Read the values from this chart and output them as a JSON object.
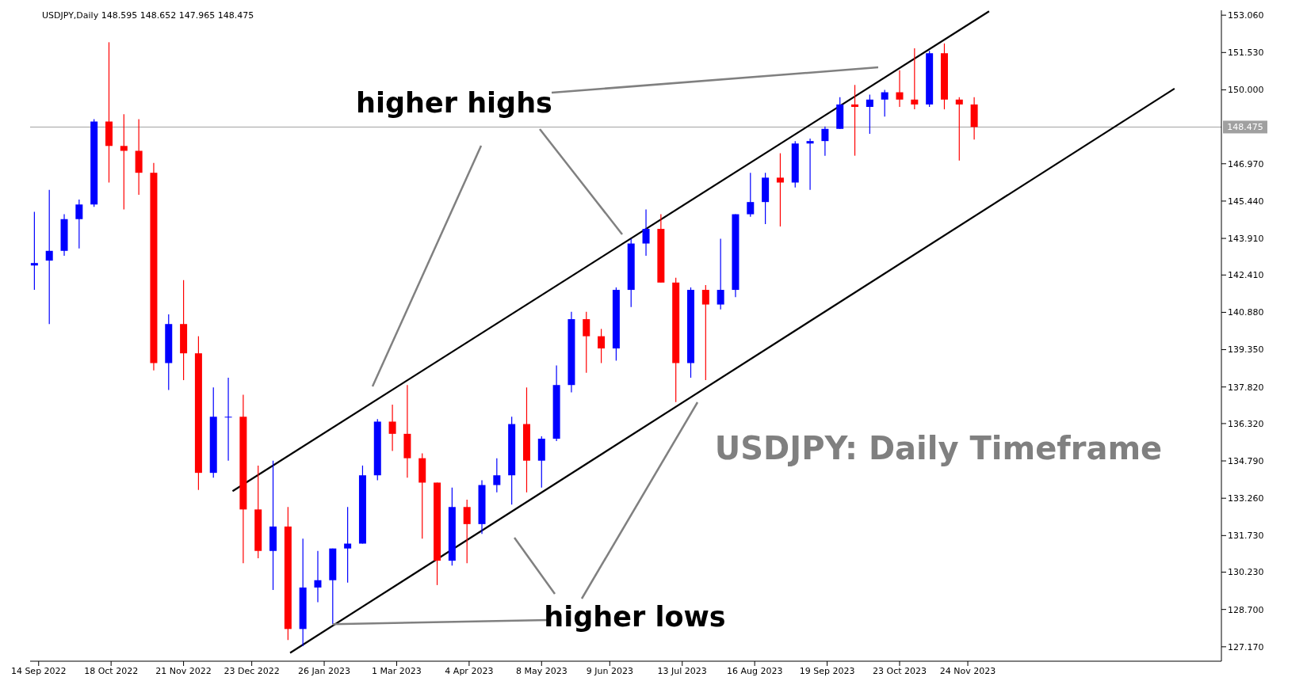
{
  "chart_data": {
    "type": "candlestick",
    "title": "USDJPY,Daily  148.595 148.652 147.965 148.475",
    "annotations": [
      "higher highs",
      {
        "text": "higher lows",
        "x": "2023-01-30",
        "y": 128.1
      },
      "USDJPY: Daily Timeframe"
    ],
    "ylim": [
      126.58,
      153.26
    ],
    "yticks": [
      {
        "value": 127.17,
        "label": "127.170"
      },
      {
        "value": 128.7,
        "label": "128.700"
      },
      {
        "value": 130.23,
        "label": "130.230"
      },
      {
        "value": 131.73,
        "label": "131.730"
      },
      {
        "value": 133.26,
        "label": "133.260"
      },
      {
        "value": 134.79,
        "label": "134.790"
      },
      {
        "value": 136.32,
        "label": "136.320"
      },
      {
        "value": 137.82,
        "label": "137.820"
      },
      {
        "value": 139.35,
        "label": "139.350"
      },
      {
        "value": 140.88,
        "label": "140.880"
      },
      {
        "value": 142.41,
        "label": "142.410"
      },
      {
        "value": 143.91,
        "label": "143.910"
      },
      {
        "value": 145.44,
        "label": "145.440"
      },
      {
        "value": 146.97,
        "label": "146.970"
      },
      {
        "value": 150,
        "label": "150.000"
      },
      {
        "value": 151.53,
        "label": "151.530"
      },
      {
        "value": 153.06,
        "label": "153.060"
      }
    ],
    "xlim": [
      "2022-09-10",
      "2024-03-22"
    ],
    "xticks": [
      {
        "value": "2022-09-14",
        "label": "14 Sep 2022"
      },
      {
        "value": "2022-10-18",
        "label": "18 Oct 2022"
      },
      {
        "value": "2022-11-21",
        "label": "21 Nov 2022"
      },
      {
        "value": "2022-12-23",
        "label": "23 Dec 2022"
      },
      {
        "value": "2023-01-26",
        "label": "26 Jan 2023"
      },
      {
        "value": "2023-03-01",
        "label": "1 Mar 2023"
      },
      {
        "value": "2023-04-04",
        "label": "4 Apr 2023"
      },
      {
        "value": "2023-05-08",
        "label": "8 May 2023"
      },
      {
        "value": "2023-06-09",
        "label": "9 Jun 2023"
      },
      {
        "value": "2023-07-13",
        "label": "13 Jul 2023"
      },
      {
        "value": "2023-08-16",
        "label": "16 Aug 2023"
      },
      {
        "value": "2023-09-19",
        "label": "19 Sep 2023"
      },
      {
        "value": "2023-10-23",
        "label": "23 Oct 2023"
      },
      {
        "value": "2023-11-24",
        "label": "24 Nov 2023"
      }
    ],
    "ref_lines": [
      {
        "axis": "y",
        "value": 148.475,
        "label": "148.475",
        "color": "#a0a0a0"
      }
    ],
    "grid": false,
    "legend": false,
    "series": [
      {
        "type": "candlestick",
        "x": [
          "2022-09-12",
          "2022-09-19",
          "2022-09-26",
          "2022-10-03",
          "2022-10-10",
          "2022-10-17",
          "2022-10-24",
          "2022-10-31",
          "2022-11-07",
          "2022-11-14",
          "2022-11-21",
          "2022-11-28",
          "2022-12-05",
          "2022-12-12",
          "2022-12-19",
          "2022-12-26",
          "2023-01-02",
          "2023-01-09",
          "2023-01-16",
          "2023-01-23",
          "2023-01-30",
          "2023-02-06",
          "2023-02-13",
          "2023-02-20",
          "2023-02-27",
          "2023-03-06",
          "2023-03-13",
          "2023-03-20",
          "2023-03-27",
          "2023-04-03",
          "2023-04-10",
          "2023-04-17",
          "2023-04-24",
          "2023-05-01",
          "2023-05-08",
          "2023-05-15",
          "2023-05-22",
          "2023-05-29",
          "2023-06-05",
          "2023-06-12",
          "2023-06-19",
          "2023-06-26",
          "2023-07-03",
          "2023-07-10",
          "2023-07-17",
          "2023-07-24",
          "2023-07-31",
          "2023-08-07",
          "2023-08-14",
          "2023-08-21",
          "2023-08-28",
          "2023-09-04",
          "2023-09-11",
          "2023-09-18",
          "2023-09-25",
          "2023-10-02",
          "2023-10-09",
          "2023-10-16",
          "2023-10-23",
          "2023-10-30",
          "2023-11-06",
          "2023-11-13",
          "2023-11-20",
          "2023-11-27"
        ],
        "ohlc": [
          [
            142.8,
            145.0,
            141.8,
            142.9
          ],
          [
            143.0,
            145.9,
            140.4,
            143.4
          ],
          [
            143.4,
            144.9,
            143.2,
            144.7
          ],
          [
            144.7,
            145.5,
            143.5,
            145.3
          ],
          [
            145.3,
            148.8,
            145.2,
            148.7
          ],
          [
            148.7,
            151.95,
            146.2,
            147.7
          ],
          [
            147.7,
            149.0,
            145.1,
            147.5
          ],
          [
            147.5,
            148.8,
            145.7,
            146.6
          ],
          [
            146.6,
            147.0,
            138.5,
            138.8
          ],
          [
            138.8,
            140.8,
            137.7,
            140.4
          ],
          [
            140.4,
            142.2,
            138.1,
            139.2
          ],
          [
            139.2,
            139.9,
            133.6,
            134.3
          ],
          [
            134.3,
            137.8,
            134.1,
            136.6
          ],
          [
            136.6,
            138.2,
            134.8,
            136.6
          ],
          [
            136.6,
            137.5,
            130.6,
            132.8
          ],
          [
            132.8,
            134.6,
            130.8,
            131.1
          ],
          [
            131.1,
            134.8,
            129.5,
            132.1
          ],
          [
            132.1,
            132.9,
            127.45,
            127.9
          ],
          [
            127.9,
            131.6,
            127.2,
            129.6
          ],
          [
            129.6,
            131.1,
            129.0,
            129.9
          ],
          [
            129.9,
            131.2,
            128.1,
            131.2
          ],
          [
            131.2,
            132.9,
            129.8,
            131.4
          ],
          [
            131.4,
            134.6,
            131.4,
            134.2
          ],
          [
            134.2,
            136.5,
            134.0,
            136.4
          ],
          [
            136.4,
            137.1,
            135.2,
            135.9
          ],
          [
            135.9,
            137.9,
            134.1,
            134.9
          ],
          [
            134.9,
            135.1,
            131.6,
            133.9
          ],
          [
            133.9,
            133.9,
            129.7,
            130.7
          ],
          [
            130.7,
            133.7,
            130.5,
            132.9
          ],
          [
            132.9,
            133.2,
            130.6,
            132.2
          ],
          [
            132.2,
            134.0,
            131.8,
            133.8
          ],
          [
            133.8,
            134.9,
            133.5,
            134.2
          ],
          [
            134.2,
            136.6,
            133.0,
            136.3
          ],
          [
            136.3,
            137.8,
            133.5,
            134.8
          ],
          [
            134.8,
            135.8,
            133.7,
            135.7
          ],
          [
            135.7,
            138.7,
            135.6,
            137.9
          ],
          [
            137.9,
            140.9,
            137.6,
            140.6
          ],
          [
            140.6,
            140.9,
            138.4,
            139.9
          ],
          [
            139.9,
            140.2,
            138.8,
            139.4
          ],
          [
            139.4,
            141.9,
            138.9,
            141.8
          ],
          [
            141.8,
            143.9,
            141.1,
            143.7
          ],
          [
            143.7,
            145.1,
            143.2,
            144.3
          ],
          [
            144.3,
            144.9,
            142.1,
            142.1
          ],
          [
            142.1,
            142.3,
            137.2,
            138.8
          ],
          [
            138.8,
            141.9,
            138.2,
            141.8
          ],
          [
            141.8,
            142.0,
            138.1,
            141.2
          ],
          [
            141.2,
            143.9,
            141.0,
            141.8
          ],
          [
            141.8,
            144.9,
            141.5,
            144.9
          ],
          [
            144.9,
            146.6,
            144.8,
            145.4
          ],
          [
            145.4,
            146.6,
            144.5,
            146.4
          ],
          [
            146.4,
            147.4,
            144.4,
            146.2
          ],
          [
            146.2,
            147.9,
            146.0,
            147.8
          ],
          [
            147.8,
            148.0,
            145.9,
            147.9
          ],
          [
            147.9,
            148.5,
            147.3,
            148.4
          ],
          [
            148.4,
            149.7,
            148.4,
            149.4
          ],
          [
            149.4,
            150.2,
            147.3,
            149.3
          ],
          [
            149.3,
            149.8,
            148.2,
            149.6
          ],
          [
            149.6,
            150.0,
            148.9,
            149.9
          ],
          [
            149.9,
            150.8,
            149.3,
            149.6
          ],
          [
            149.6,
            151.7,
            149.2,
            149.4
          ],
          [
            149.4,
            151.6,
            149.3,
            151.5
          ],
          [
            151.5,
            151.9,
            149.2,
            149.6
          ],
          [
            149.6,
            149.7,
            147.1,
            149.4
          ],
          [
            149.4,
            149.7,
            147.965,
            148.475
          ]
        ],
        "colors": [
          "#0000ff",
          "#0000ff",
          "#0000ff",
          "#0000ff",
          "#0000ff",
          "#ff0000",
          "#ff0000",
          "#ff0000",
          "#ff0000",
          "#0000ff",
          "#ff0000",
          "#ff0000",
          "#0000ff",
          "#0000ff",
          "#ff0000",
          "#ff0000",
          "#0000ff",
          "#ff0000",
          "#0000ff",
          "#0000ff",
          "#0000ff",
          "#0000ff",
          "#0000ff",
          "#0000ff",
          "#ff0000",
          "#ff0000",
          "#ff0000",
          "#ff0000",
          "#0000ff",
          "#ff0000",
          "#0000ff",
          "#0000ff",
          "#0000ff",
          "#ff0000",
          "#0000ff",
          "#0000ff",
          "#0000ff",
          "#ff0000",
          "#ff0000",
          "#0000ff",
          "#0000ff",
          "#0000ff",
          "#ff0000",
          "#ff0000",
          "#0000ff",
          "#ff0000",
          "#0000ff",
          "#0000ff",
          "#0000ff",
          "#0000ff",
          "#ff0000",
          "#0000ff",
          "#0000ff",
          "#0000ff",
          "#0000ff",
          "#ff0000",
          "#0000ff",
          "#0000ff",
          "#ff0000",
          "#ff0000",
          "#0000ff",
          "#ff0000",
          "#ff0000",
          "#ff0000"
        ]
      },
      {
        "type": "line",
        "x": [
          "2022-12-14",
          "2023-12-04"
        ],
        "values": [
          133.55,
          153.22
        ],
        "color": "#000000"
      },
      {
        "type": "line",
        "x": [
          "2023-01-10",
          "2024-02-29"
        ],
        "values": [
          126.92,
          150.05
        ],
        "color": "#000000"
      }
    ]
  }
}
